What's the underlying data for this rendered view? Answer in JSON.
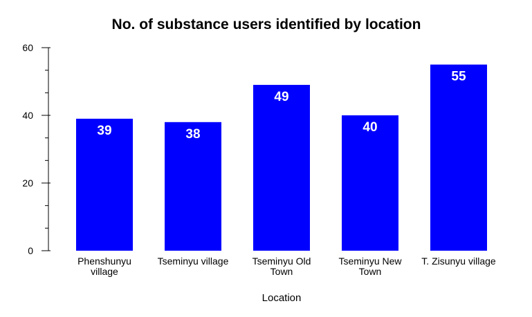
{
  "chart_data": {
    "type": "bar",
    "title": "No. of substance users identified by location",
    "xlabel": "Location",
    "ylabel": "",
    "categories": [
      [
        "Phenshunyu",
        "village"
      ],
      [
        "Tseminyu village"
      ],
      [
        "Tseminyu Old",
        "Town"
      ],
      [
        "Tseminyu New",
        "Town"
      ],
      [
        "T. Zisunyu village"
      ]
    ],
    "values": [
      39,
      38,
      49,
      40,
      55
    ],
    "data_labels": [
      "39",
      "38",
      "49",
      "40",
      "55"
    ],
    "ylim": [
      0,
      60
    ],
    "y_ticks": [
      0,
      20,
      40,
      60
    ],
    "y_tick_labels": [
      "0",
      "20",
      "40",
      "60"
    ],
    "y_minor_step": 6.6667,
    "grid": false,
    "legend": "none",
    "colors": {
      "bar": "#0000ff",
      "bar_label": "#ffffff",
      "axis": "#000000",
      "text": "#000000"
    }
  }
}
